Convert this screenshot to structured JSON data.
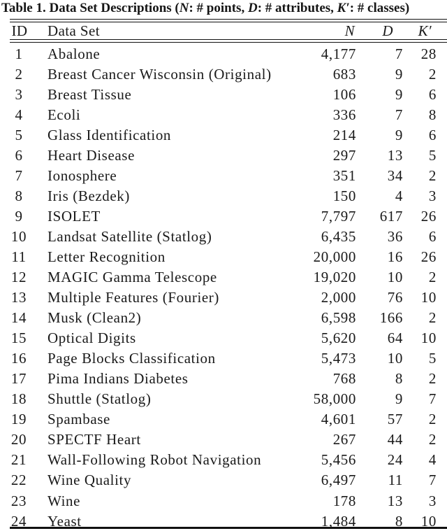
{
  "colors": {
    "background": "#ffffff",
    "text": "#1a1a1a",
    "rule": "#111111"
  },
  "caption": {
    "label": "Table 1.",
    "part1": " Data Set Descriptions (",
    "var1": "N",
    "part2": ": # points, ",
    "var2": "D",
    "part3": ": # attributes, ",
    "var3": "K′",
    "part4": ": # classes)"
  },
  "table": {
    "headers": {
      "id": "ID",
      "name": "Data Set",
      "n": "N",
      "d": "D",
      "k": "K′"
    },
    "rows": [
      {
        "id": "1",
        "name": "Abalone",
        "n": "4,177",
        "d": "7",
        "k": "28"
      },
      {
        "id": "2",
        "name": "Breast Cancer Wisconsin (Original)",
        "n": "683",
        "d": "9",
        "k": "2"
      },
      {
        "id": "3",
        "name": "Breast Tissue",
        "n": "106",
        "d": "9",
        "k": "6"
      },
      {
        "id": "4",
        "name": "Ecoli",
        "n": "336",
        "d": "7",
        "k": "8"
      },
      {
        "id": "5",
        "name": "Glass Identification",
        "n": "214",
        "d": "9",
        "k": "6"
      },
      {
        "id": "6",
        "name": "Heart Disease",
        "n": "297",
        "d": "13",
        "k": "5"
      },
      {
        "id": "7",
        "name": "Ionosphere",
        "n": "351",
        "d": "34",
        "k": "2"
      },
      {
        "id": "8",
        "name": "Iris (Bezdek)",
        "n": "150",
        "d": "4",
        "k": "3"
      },
      {
        "id": "9",
        "name": "ISOLET",
        "n": "7,797",
        "d": "617",
        "k": "26"
      },
      {
        "id": "10",
        "name": "Landsat Satellite (Statlog)",
        "n": "6,435",
        "d": "36",
        "k": "6"
      },
      {
        "id": "11",
        "name": "Letter Recognition",
        "n": "20,000",
        "d": "16",
        "k": "26"
      },
      {
        "id": "12",
        "name": "MAGIC Gamma Telescope",
        "n": "19,020",
        "d": "10",
        "k": "2"
      },
      {
        "id": "13",
        "name": "Multiple Features (Fourier)",
        "n": "2,000",
        "d": "76",
        "k": "10"
      },
      {
        "id": "14",
        "name": "Musk (Clean2)",
        "n": "6,598",
        "d": "166",
        "k": "2"
      },
      {
        "id": "15",
        "name": "Optical Digits",
        "n": "5,620",
        "d": "64",
        "k": "10"
      },
      {
        "id": "16",
        "name": "Page Blocks Classification",
        "n": "5,473",
        "d": "10",
        "k": "5"
      },
      {
        "id": "17",
        "name": "Pima Indians Diabetes",
        "n": "768",
        "d": "8",
        "k": "2"
      },
      {
        "id": "18",
        "name": "Shuttle (Statlog)",
        "n": "58,000",
        "d": "9",
        "k": "7"
      },
      {
        "id": "19",
        "name": "Spambase",
        "n": "4,601",
        "d": "57",
        "k": "2"
      },
      {
        "id": "20",
        "name": "SPECTF Heart",
        "n": "267",
        "d": "44",
        "k": "2"
      },
      {
        "id": "21",
        "name": "Wall-Following Robot Navigation",
        "n": "5,456",
        "d": "24",
        "k": "4"
      },
      {
        "id": "22",
        "name": "Wine Quality",
        "n": "6,497",
        "d": "11",
        "k": "7"
      },
      {
        "id": "23",
        "name": "Wine",
        "n": "178",
        "d": "13",
        "k": "3"
      },
      {
        "id": "24",
        "name": "Yeast",
        "n": "1,484",
        "d": "8",
        "k": "10"
      }
    ]
  }
}
